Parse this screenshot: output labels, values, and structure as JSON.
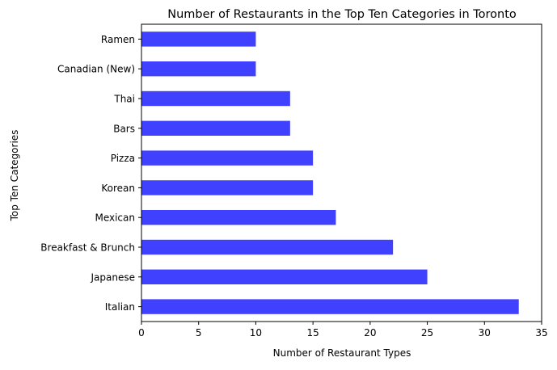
{
  "chart_data": {
    "type": "bar",
    "orientation": "horizontal",
    "title": "Number of Restaurants in the Top Ten Categories in Toronto",
    "xlabel": "Number of Restaurant Types",
    "ylabel": "Top Ten Categories",
    "categories": [
      "Italian",
      "Japanese",
      "Breakfast & Brunch",
      "Mexican",
      "Korean",
      "Pizza",
      "Bars",
      "Thai",
      "Canadian (New)",
      "Ramen"
    ],
    "values": [
      33,
      25,
      22,
      17,
      15,
      15,
      13,
      13,
      10,
      10
    ],
    "xlim": [
      0,
      35
    ],
    "xticks": [
      0,
      5,
      10,
      15,
      20,
      25,
      30,
      35
    ],
    "bar_color": "#4040ff",
    "grid": false,
    "legend": "none"
  }
}
